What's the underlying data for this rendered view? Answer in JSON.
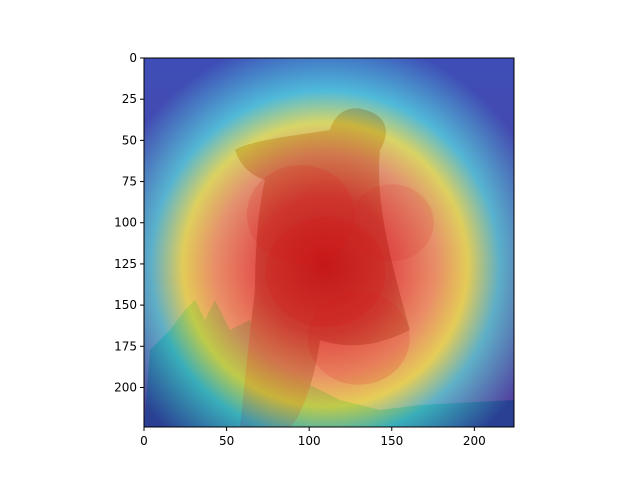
{
  "chart_data": {
    "type": "heatmap",
    "title": "",
    "xlabel": "",
    "ylabel": "",
    "xlim": [
      0,
      224
    ],
    "ylim": [
      224,
      0
    ],
    "x_ticks": [
      0,
      50,
      100,
      150,
      200
    ],
    "y_ticks": [
      0,
      25,
      50,
      75,
      100,
      125,
      150,
      175,
      200
    ],
    "x_tick_labels": [
      "0",
      "50",
      "100",
      "150",
      "200"
    ],
    "y_tick_labels": [
      "0",
      "25",
      "50",
      "75",
      "100",
      "125",
      "150",
      "175",
      "200"
    ],
    "colormap": "jet",
    "overlay": "attention heatmap blended over a photograph",
    "heat_centers": [
      {
        "x": 110,
        "y": 130,
        "intensity": 1.0
      },
      {
        "x": 95,
        "y": 95,
        "intensity": 0.9
      },
      {
        "x": 130,
        "y": 170,
        "intensity": 0.85
      },
      {
        "x": 150,
        "y": 100,
        "intensity": 0.7
      }
    ],
    "colors": {
      "cold": "#1a2fb0",
      "cool": "#2ec8e6",
      "mid": "#e8f04a",
      "warm": "#f08a30",
      "hot": "#d81818",
      "photo_figure": "#7a1010",
      "photo_ground": "#3d6a40",
      "photo_sky": "#d86a78"
    }
  }
}
